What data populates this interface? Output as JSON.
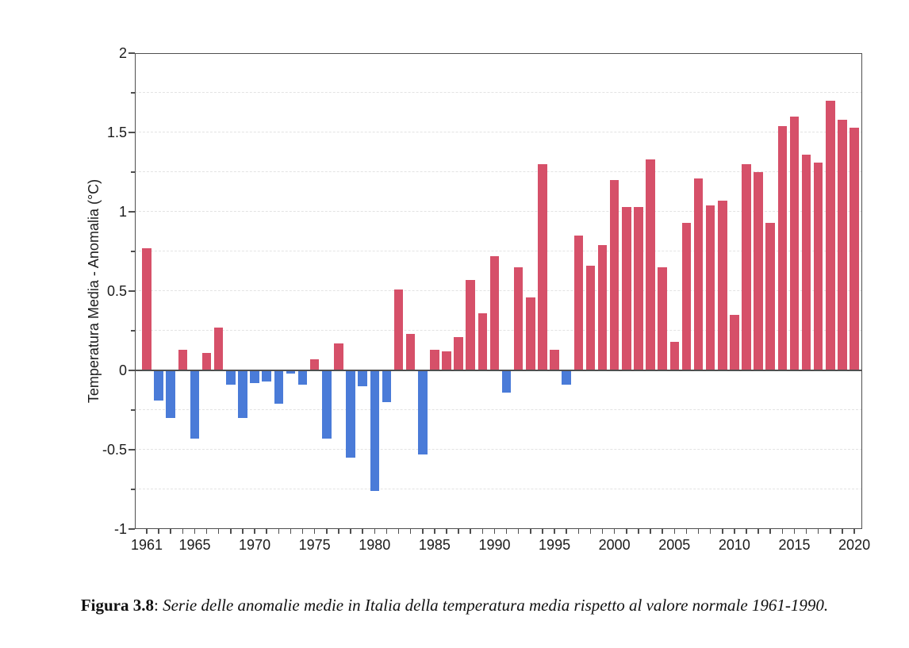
{
  "chart_data": {
    "type": "bar",
    "title": "",
    "xlabel": "",
    "ylabel": "Temperatura Media - Anomalia (°C)",
    "ylim": [
      -1,
      2
    ],
    "baseline": 0,
    "grid": "horizontal dashed every 0.25, no vertical grid",
    "legend": null,
    "colors": {
      "positive": "#d65069",
      "negative": "#4a7bd8",
      "axis": "#4f4f4f"
    },
    "ytick_major_values": [
      2,
      1.5,
      1,
      0.5,
      0,
      -0.5,
      -1
    ],
    "ytick_labels": [
      "2",
      "1.5",
      "1",
      "0.5",
      "0",
      "-0.5",
      "-1"
    ],
    "ytick_minor_step": 0.25,
    "xtick_labeled_years": [
      1961,
      1965,
      1970,
      1975,
      1980,
      1985,
      1990,
      1995,
      2000,
      2005,
      2010,
      2015,
      2020
    ],
    "x": [
      1961,
      1962,
      1963,
      1964,
      1965,
      1966,
      1967,
      1968,
      1969,
      1970,
      1971,
      1972,
      1973,
      1974,
      1975,
      1976,
      1977,
      1978,
      1979,
      1980,
      1981,
      1982,
      1983,
      1984,
      1985,
      1986,
      1987,
      1988,
      1989,
      1990,
      1991,
      1992,
      1993,
      1994,
      1995,
      1996,
      1997,
      1998,
      1999,
      2000,
      2001,
      2002,
      2003,
      2004,
      2005,
      2006,
      2007,
      2008,
      2009,
      2010,
      2011,
      2012,
      2013,
      2014,
      2015,
      2016,
      2017,
      2018,
      2019,
      2020
    ],
    "values": [
      0.77,
      -0.19,
      -0.3,
      0.13,
      -0.43,
      0.11,
      0.27,
      -0.09,
      -0.3,
      -0.08,
      -0.07,
      -0.21,
      -0.02,
      -0.09,
      0.07,
      -0.43,
      0.17,
      -0.55,
      -0.1,
      -0.76,
      -0.2,
      0.51,
      0.23,
      -0.53,
      0.13,
      0.12,
      0.21,
      0.57,
      0.36,
      0.72,
      -0.14,
      0.65,
      0.46,
      1.3,
      0.13,
      -0.09,
      0.85,
      0.66,
      0.79,
      1.2,
      1.03,
      1.03,
      1.33,
      0.65,
      0.18,
      0.93,
      1.21,
      1.04,
      1.07,
      0.35,
      1.3,
      1.25,
      0.93,
      1.54,
      1.6,
      1.36,
      1.31,
      1.7,
      1.58,
      1.53
    ]
  },
  "caption": {
    "label": "Figura 3.8",
    "separator": ": ",
    "text": "Serie delle anomalie medie in Italia della temperatura media rispetto al valore normale 1961-1990."
  }
}
